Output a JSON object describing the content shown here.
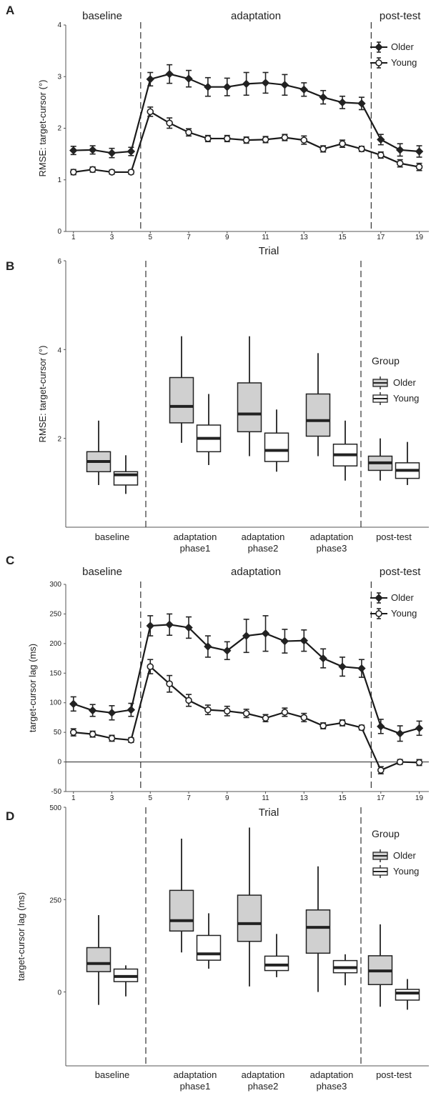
{
  "panels": [
    {
      "label": "A",
      "chart_data": {
        "type": "line",
        "ylabel": "RMSE: target-cursor (°)",
        "xlabel": "Trial",
        "ylim": [
          0,
          4
        ],
        "yticks": [
          "0",
          "1",
          "2",
          "3",
          "4"
        ],
        "xlim": [
          0.6,
          19.5
        ],
        "xticks": [
          "1",
          "3",
          "5",
          "7",
          "9",
          "11",
          "13",
          "15",
          "17",
          "19"
        ],
        "segments": [
          {
            "label": "baseline",
            "center": 2.5
          },
          {
            "label": "adaptation",
            "center": 10.5
          },
          {
            "label": "post-test",
            "center": 18
          }
        ],
        "dividers": [
          4.5,
          16.5
        ],
        "legend": [
          "Older",
          "Young"
        ],
        "x": [
          1,
          2,
          3,
          4,
          5,
          6,
          7,
          8,
          9,
          10,
          11,
          12,
          13,
          14,
          15,
          16,
          17,
          18,
          19
        ],
        "series": [
          {
            "name": "Older",
            "marker": "diamond",
            "values": [
              1.57,
              1.58,
              1.52,
              1.55,
              2.95,
              3.05,
              2.96,
              2.8,
              2.8,
              2.86,
              2.88,
              2.84,
              2.75,
              2.6,
              2.5,
              2.48,
              1.78,
              1.58,
              1.55
            ],
            "errors": [
              0.08,
              0.08,
              0.09,
              0.08,
              0.13,
              0.18,
              0.16,
              0.18,
              0.17,
              0.22,
              0.2,
              0.2,
              0.13,
              0.13,
              0.12,
              0.12,
              0.1,
              0.12,
              0.11
            ]
          },
          {
            "name": "Young",
            "marker": "circle",
            "values": [
              1.15,
              1.2,
              1.15,
              1.15,
              2.32,
              2.1,
              1.92,
              1.8,
              1.8,
              1.77,
              1.78,
              1.82,
              1.77,
              1.6,
              1.7,
              1.6,
              1.48,
              1.32,
              1.25
            ],
            "errors": [
              0.05,
              0.05,
              0.04,
              0.04,
              0.09,
              0.1,
              0.07,
              0.06,
              0.06,
              0.06,
              0.06,
              0.06,
              0.08,
              0.06,
              0.07,
              0.05,
              0.06,
              0.07,
              0.07
            ]
          }
        ]
      }
    },
    {
      "label": "B",
      "chart_data": {
        "type": "box",
        "ylabel": "RMSE: target-cursor (°)",
        "ylim": [
          0,
          6
        ],
        "yticks": [
          {
            "v": 2,
            "label": "2"
          },
          {
            "v": 4,
            "label": "4"
          },
          {
            "v": 6,
            "label": "6"
          }
        ],
        "categories": [
          {
            "line1": "baseline",
            "line2": ""
          },
          {
            "line1": "adaptation",
            "line2": "phase1"
          },
          {
            "line1": "adaptation",
            "line2": "phase2"
          },
          {
            "line1": "adaptation",
            "line2": "phase3"
          },
          {
            "line1": "post-test",
            "line2": ""
          }
        ],
        "legend_title": "Group",
        "legend": [
          "Older",
          "Young"
        ],
        "series": [
          {
            "name": "Older",
            "fill": "#d0d0d0",
            "boxes": [
              {
                "min": 0.95,
                "q1": 1.25,
                "median": 1.48,
                "q3": 1.7,
                "max": 2.4
              },
              {
                "min": 1.9,
                "q1": 2.35,
                "median": 2.72,
                "q3": 3.37,
                "max": 4.3
              },
              {
                "min": 1.6,
                "q1": 2.15,
                "median": 2.55,
                "q3": 3.25,
                "max": 4.3
              },
              {
                "min": 1.6,
                "q1": 2.05,
                "median": 2.4,
                "q3": 3.0,
                "max": 3.92
              },
              {
                "min": 1.05,
                "q1": 1.28,
                "median": 1.45,
                "q3": 1.6,
                "max": 2.0
              }
            ]
          },
          {
            "name": "Young",
            "fill": "#ffffff",
            "boxes": [
              {
                "min": 0.75,
                "q1": 0.95,
                "median": 1.18,
                "q3": 1.25,
                "max": 1.62
              },
              {
                "min": 1.4,
                "q1": 1.7,
                "median": 2.0,
                "q3": 2.3,
                "max": 3.0
              },
              {
                "min": 1.25,
                "q1": 1.48,
                "median": 1.73,
                "q3": 2.12,
                "max": 2.65
              },
              {
                "min": 1.05,
                "q1": 1.38,
                "median": 1.63,
                "q3": 1.87,
                "max": 2.4
              },
              {
                "min": 0.95,
                "q1": 1.1,
                "median": 1.28,
                "q3": 1.45,
                "max": 1.92
              }
            ]
          }
        ]
      }
    },
    {
      "label": "C",
      "chart_data": {
        "type": "line",
        "ylabel": "target-cursor  lag (ms)",
        "xlabel": "Trial",
        "ylim": [
          -50,
          300
        ],
        "yticks": [
          "-50",
          "0",
          "50",
          "100",
          "150",
          "200",
          "250",
          "300"
        ],
        "xlim": [
          0.6,
          19.5
        ],
        "xticks": [
          "1",
          "3",
          "5",
          "7",
          "9",
          "11",
          "13",
          "15",
          "17",
          "19"
        ],
        "zero_line": true,
        "segments": [
          {
            "label": "baseline",
            "center": 2.5
          },
          {
            "label": "adaptation",
            "center": 10.5
          },
          {
            "label": "post-test",
            "center": 18
          }
        ],
        "dividers": [
          4.5,
          16.5
        ],
        "legend": [
          "Older",
          "Young"
        ],
        "x": [
          1,
          2,
          3,
          4,
          5,
          6,
          7,
          8,
          9,
          10,
          11,
          12,
          13,
          14,
          15,
          16,
          17,
          18,
          19
        ],
        "series": [
          {
            "name": "Older",
            "marker": "diamond",
            "values": [
              98,
              87,
              83,
              88,
              230,
              232,
              227,
              195,
              188,
              213,
              217,
              204,
              205,
              175,
              161,
              158,
              60,
              48,
              57
            ],
            "errors": [
              12,
              10,
              12,
              11,
              17,
              18,
              18,
              18,
              15,
              28,
              30,
              20,
              18,
              16,
              16,
              15,
              12,
              13,
              12
            ]
          },
          {
            "name": "Young",
            "marker": "circle",
            "values": [
              50,
              47,
              40,
              37,
              161,
              132,
              104,
              88,
              86,
              82,
              74,
              84,
              75,
              61,
              66,
              58,
              -14,
              0,
              -1
            ],
            "errors": [
              6,
              5,
              5,
              4,
              12,
              14,
              10,
              8,
              8,
              7,
              6,
              7,
              7,
              5,
              5,
              4,
              6,
              4,
              5
            ]
          }
        ]
      }
    },
    {
      "label": "D",
      "chart_data": {
        "type": "box",
        "ylabel": "target-cursor lag (ms)",
        "ylim": [
          -200,
          500
        ],
        "yticks": [
          {
            "v": 0,
            "label": "0"
          },
          {
            "v": 250,
            "label": "250"
          },
          {
            "v": 500,
            "label": "500"
          }
        ],
        "categories": [
          {
            "line1": "baseline",
            "line2": ""
          },
          {
            "line1": "adaptation",
            "line2": "phase1"
          },
          {
            "line1": "adaptation",
            "line2": "phase2"
          },
          {
            "line1": "adaptation",
            "line2": "phase3"
          },
          {
            "line1": "post-test",
            "line2": ""
          }
        ],
        "legend_title": "Group",
        "legend": [
          "Older",
          "Young"
        ],
        "series": [
          {
            "name": "Older",
            "fill": "#d0d0d0",
            "boxes": [
              {
                "min": -35,
                "q1": 55,
                "median": 77,
                "q3": 120,
                "max": 208
              },
              {
                "min": 107,
                "q1": 165,
                "median": 193,
                "q3": 275,
                "max": 415
              },
              {
                "min": 15,
                "q1": 137,
                "median": 185,
                "q3": 262,
                "max": 445
              },
              {
                "min": 0,
                "q1": 105,
                "median": 175,
                "q3": 222,
                "max": 340
              },
              {
                "min": -40,
                "q1": 20,
                "median": 57,
                "q3": 98,
                "max": 183
              }
            ]
          },
          {
            "name": "Young",
            "fill": "#ffffff",
            "boxes": [
              {
                "min": -12,
                "q1": 28,
                "median": 42,
                "q3": 62,
                "max": 72
              },
              {
                "min": 63,
                "q1": 86,
                "median": 103,
                "q3": 153,
                "max": 213
              },
              {
                "min": 40,
                "q1": 58,
                "median": 73,
                "q3": 97,
                "max": 157
              },
              {
                "min": 18,
                "q1": 52,
                "median": 66,
                "q3": 85,
                "max": 102
              },
              {
                "min": -48,
                "q1": -22,
                "median": -3,
                "q3": 7,
                "max": 35
              }
            ]
          }
        ]
      }
    }
  ]
}
